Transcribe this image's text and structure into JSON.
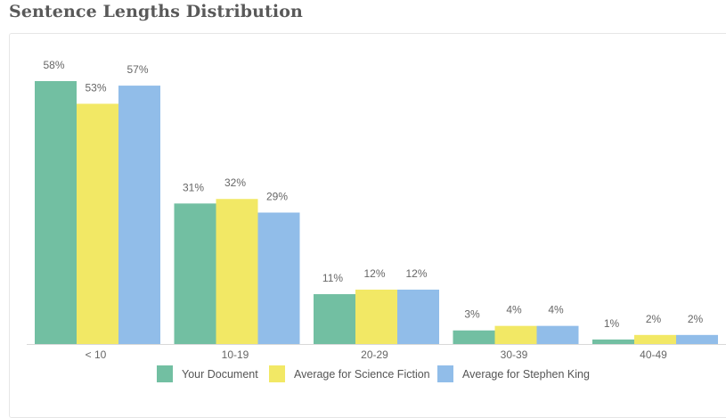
{
  "title": "Sentence Lengths Distribution",
  "colors": {
    "your_document": "#72bfa2",
    "science_fiction": "#f2e865",
    "stephen_king": "#91bde9",
    "axis": "#d9d9d9"
  },
  "chart_data": {
    "type": "bar",
    "title": "Sentence Lengths Distribution",
    "categories": [
      "< 10",
      "10-19",
      "20-29",
      "30-39",
      "40-49"
    ],
    "series": [
      {
        "name": "Your Document",
        "values": [
          58,
          31,
          11,
          3,
          1
        ],
        "labels": [
          "58%",
          "31%",
          "11%",
          "3%",
          "1%"
        ]
      },
      {
        "name": "Average for Science Fiction",
        "values": [
          53,
          32,
          12,
          4,
          2
        ],
        "labels": [
          "53%",
          "32%",
          "12%",
          "4%",
          "2%"
        ]
      },
      {
        "name": "Average for Stephen King",
        "values": [
          57,
          29,
          12,
          4,
          2
        ],
        "labels": [
          "57%",
          "29%",
          "12%",
          "4%",
          "2%"
        ]
      }
    ],
    "ylim": [
      0,
      58
    ],
    "unit": "%",
    "grid": false,
    "legend_position": "bottom"
  }
}
